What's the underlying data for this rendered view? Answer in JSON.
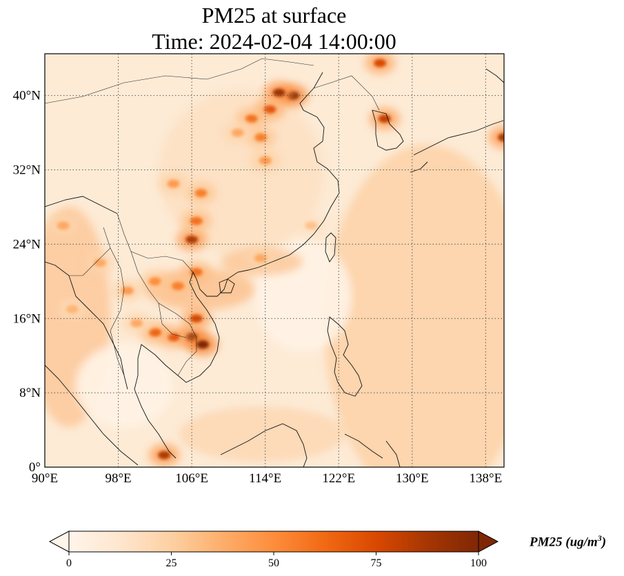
{
  "title": {
    "line1": "PM25 at surface",
    "line2": "Time: 2024-02-04 14:00:00"
  },
  "map": {
    "extent_lon": [
      90,
      140
    ],
    "extent_lat": [
      0,
      44.5
    ],
    "lon_ticks": [
      {
        "value": 90,
        "label": "90°E"
      },
      {
        "value": 98,
        "label": "98°E"
      },
      {
        "value": 106,
        "label": "106°E"
      },
      {
        "value": 114,
        "label": "114°E"
      },
      {
        "value": 122,
        "label": "122°E"
      },
      {
        "value": 130,
        "label": "130°E"
      },
      {
        "value": 138,
        "label": "138°E"
      }
    ],
    "lat_ticks": [
      {
        "value": 0,
        "label": "0°"
      },
      {
        "value": 8,
        "label": "8°N"
      },
      {
        "value": 16,
        "label": "16°N"
      },
      {
        "value": 24,
        "label": "24°N"
      },
      {
        "value": 32,
        "label": "32°N"
      },
      {
        "value": 40,
        "label": "40°N"
      }
    ],
    "gridlines": "dotted",
    "hotspots": [
      {
        "lon": 117,
        "lat": 40,
        "value": 100
      },
      {
        "lon": 115.5,
        "lat": 40.3,
        "value": 90
      },
      {
        "lon": 114.5,
        "lat": 38.5,
        "value": 70
      },
      {
        "lon": 112.5,
        "lat": 37.5,
        "value": 60
      },
      {
        "lon": 113.5,
        "lat": 35.5,
        "value": 55
      },
      {
        "lon": 114,
        "lat": 33,
        "value": 45
      },
      {
        "lon": 111,
        "lat": 36,
        "value": 40
      },
      {
        "lon": 107,
        "lat": 29.5,
        "value": 55
      },
      {
        "lon": 106,
        "lat": 24.5,
        "value": 85
      },
      {
        "lon": 106.5,
        "lat": 26.5,
        "value": 60
      },
      {
        "lon": 104,
        "lat": 30.5,
        "value": 45
      },
      {
        "lon": 106,
        "lat": 14,
        "value": 100
      },
      {
        "lon": 107.2,
        "lat": 13.2,
        "value": 100
      },
      {
        "lon": 106.5,
        "lat": 16,
        "value": 75
      },
      {
        "lon": 104,
        "lat": 14,
        "value": 70
      },
      {
        "lon": 102,
        "lat": 14.5,
        "value": 65
      },
      {
        "lon": 106.5,
        "lat": 21,
        "value": 60
      },
      {
        "lon": 102,
        "lat": 20,
        "value": 50
      },
      {
        "lon": 104.5,
        "lat": 19.5,
        "value": 55
      },
      {
        "lon": 99,
        "lat": 19,
        "value": 45
      },
      {
        "lon": 96,
        "lat": 22,
        "value": 40
      },
      {
        "lon": 92,
        "lat": 26,
        "value": 40
      },
      {
        "lon": 100,
        "lat": 15.5,
        "value": 40
      },
      {
        "lon": 93,
        "lat": 17,
        "value": 35
      },
      {
        "lon": 103,
        "lat": 1.3,
        "value": 85
      },
      {
        "lon": 126.5,
        "lat": 43.5,
        "value": 75
      },
      {
        "lon": 127,
        "lat": 37.5,
        "value": 80
      },
      {
        "lon": 140,
        "lat": 35.5,
        "value": 85
      },
      {
        "lon": 113.5,
        "lat": 22.5,
        "value": 40
      },
      {
        "lon": 119,
        "lat": 26,
        "value": 30
      }
    ]
  },
  "colorbar": {
    "ticks": [
      {
        "value": 0,
        "label": "0"
      },
      {
        "value": 25,
        "label": "25"
      },
      {
        "value": 50,
        "label": "50"
      },
      {
        "value": 75,
        "label": "75"
      },
      {
        "value": 100,
        "label": "100"
      }
    ],
    "min": 0,
    "max": 100,
    "extend": "both",
    "label": "PM25 (ug/m",
    "label_sup": "3",
    "label_close": ")",
    "colormap": [
      "#fff5eb",
      "#fee6ce",
      "#fdd0a2",
      "#fdae6b",
      "#fd8d3c",
      "#f16913",
      "#d94801",
      "#a63603",
      "#7f2704"
    ]
  }
}
